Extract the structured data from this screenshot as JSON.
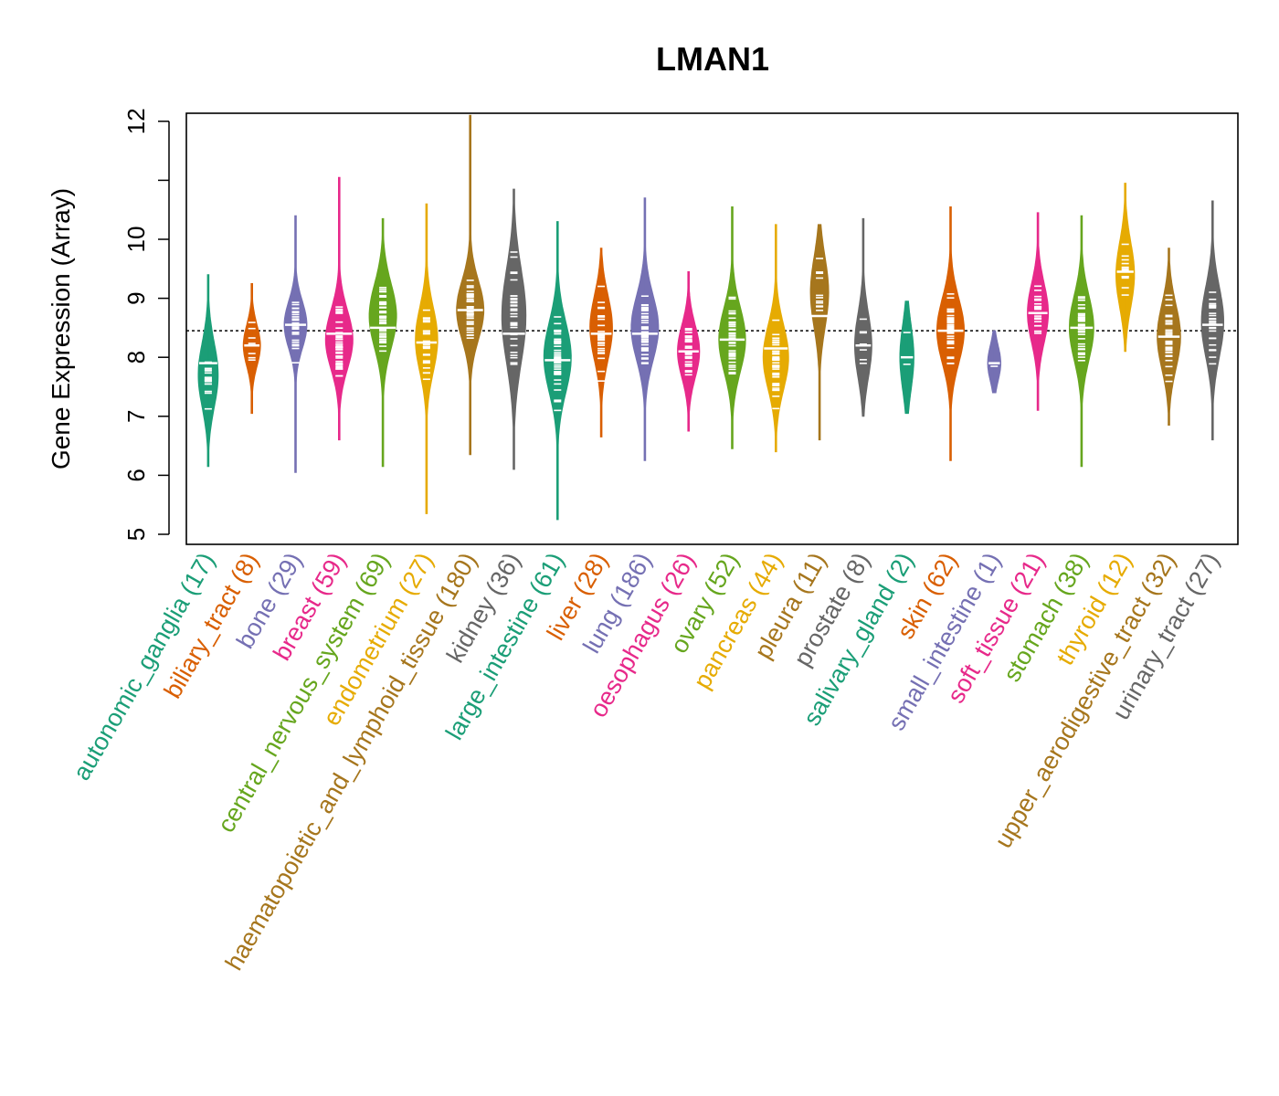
{
  "chart_data": {
    "type": "violin",
    "title": "LMAN1",
    "ylabel": "Gene Expression (Array)",
    "xlabel": "",
    "ylim": [
      4.8,
      12.2
    ],
    "yticks": [
      "5",
      "6",
      "7",
      "8",
      "9",
      "10",
      "11",
      "12"
    ],
    "reference_line": 8.45,
    "categories": [
      {
        "name": "autonomic_ganglia",
        "count": "(17)",
        "color": "#1B9E77",
        "min": 6.15,
        "max": 9.4,
        "median": 7.9,
        "peak": 7.7,
        "spread": 0.55
      },
      {
        "name": "biliary_tract",
        "count": "(8)",
        "color": "#D95F02",
        "min": 7.05,
        "max": 9.25,
        "median": 8.2,
        "peak": 8.2,
        "spread": 0.35
      },
      {
        "name": "bone",
        "count": "(29)",
        "color": "#7570B3",
        "min": 6.05,
        "max": 10.4,
        "median": 8.55,
        "peak": 8.55,
        "spread": 0.4
      },
      {
        "name": "breast",
        "count": "(59)",
        "color": "#E7298A",
        "min": 6.6,
        "max": 11.05,
        "median": 8.4,
        "peak": 8.3,
        "spread": 0.5
      },
      {
        "name": "central_nervous_system",
        "count": "(69)",
        "color": "#66A61E",
        "min": 6.15,
        "max": 10.35,
        "median": 8.5,
        "peak": 8.7,
        "spread": 0.55
      },
      {
        "name": "endometrium",
        "count": "(27)",
        "color": "#E6AB02",
        "min": 5.35,
        "max": 10.6,
        "median": 8.25,
        "peak": 8.3,
        "spread": 0.55
      },
      {
        "name": "haematopoietic_and_lymphoid_tissue",
        "count": "(180)",
        "color": "#A6761D",
        "min": 6.35,
        "max": 12.1,
        "median": 8.8,
        "peak": 8.8,
        "spread": 0.5
      },
      {
        "name": "kidney",
        "count": "(36)",
        "color": "#666666",
        "min": 6.1,
        "max": 10.85,
        "median": 8.4,
        "peak": 8.7,
        "spread": 0.8
      },
      {
        "name": "large_intestine",
        "count": "(61)",
        "color": "#1B9E77",
        "min": 5.25,
        "max": 10.3,
        "median": 7.95,
        "peak": 8.0,
        "spread": 0.6
      },
      {
        "name": "liver",
        "count": "(28)",
        "color": "#D95F02",
        "min": 6.65,
        "max": 9.85,
        "median": 8.4,
        "peak": 8.5,
        "spread": 0.55
      },
      {
        "name": "lung",
        "count": "(186)",
        "color": "#7570B3",
        "min": 6.25,
        "max": 10.7,
        "median": 8.4,
        "peak": 8.5,
        "spread": 0.55
      },
      {
        "name": "oesophagus",
        "count": "(26)",
        "color": "#E7298A",
        "min": 6.75,
        "max": 9.45,
        "median": 8.1,
        "peak": 8.1,
        "spread": 0.45
      },
      {
        "name": "ovary",
        "count": "(52)",
        "color": "#66A61E",
        "min": 6.45,
        "max": 10.55,
        "median": 8.3,
        "peak": 8.3,
        "spread": 0.55
      },
      {
        "name": "pancreas",
        "count": "(44)",
        "color": "#E6AB02",
        "min": 6.4,
        "max": 10.25,
        "median": 8.15,
        "peak": 8.0,
        "spread": 0.55
      },
      {
        "name": "pleura",
        "count": "(11)",
        "color": "#A6761D",
        "min": 6.6,
        "max": 10.25,
        "median": 8.7,
        "peak": 9.1,
        "spread": 0.6
      },
      {
        "name": "prostate",
        "count": "(8)",
        "color": "#666666",
        "min": 7.0,
        "max": 10.35,
        "median": 8.2,
        "peak": 8.2,
        "spread": 0.55
      },
      {
        "name": "salivary_gland",
        "count": "(2)",
        "color": "#1B9E77",
        "min": 7.05,
        "max": 8.95,
        "median": 8.0,
        "peak": 8.0,
        "spread": 0.55
      },
      {
        "name": "skin",
        "count": "(62)",
        "color": "#D95F02",
        "min": 6.25,
        "max": 10.55,
        "median": 8.45,
        "peak": 8.45,
        "spread": 0.55
      },
      {
        "name": "small_intestine",
        "count": "(1)",
        "color": "#7570B3",
        "min": 7.4,
        "max": 8.45,
        "median": 7.9,
        "peak": 7.9,
        "spread": 0.3
      },
      {
        "name": "soft_tissue",
        "count": "(21)",
        "color": "#E7298A",
        "min": 7.1,
        "max": 10.45,
        "median": 8.75,
        "peak": 8.75,
        "spread": 0.5
      },
      {
        "name": "stomach",
        "count": "(38)",
        "color": "#66A61E",
        "min": 6.15,
        "max": 10.4,
        "median": 8.5,
        "peak": 8.5,
        "spread": 0.55
      },
      {
        "name": "thyroid",
        "count": "(12)",
        "color": "#E6AB02",
        "min": 8.1,
        "max": 10.95,
        "median": 9.45,
        "peak": 9.4,
        "spread": 0.55
      },
      {
        "name": "upper_aerodigestive_tract",
        "count": "(32)",
        "color": "#A6761D",
        "min": 6.85,
        "max": 9.85,
        "median": 8.35,
        "peak": 8.35,
        "spread": 0.55
      },
      {
        "name": "urinary_tract",
        "count": "(27)",
        "color": "#666666",
        "min": 6.6,
        "max": 10.65,
        "median": 8.55,
        "peak": 8.6,
        "spread": 0.6
      }
    ]
  }
}
